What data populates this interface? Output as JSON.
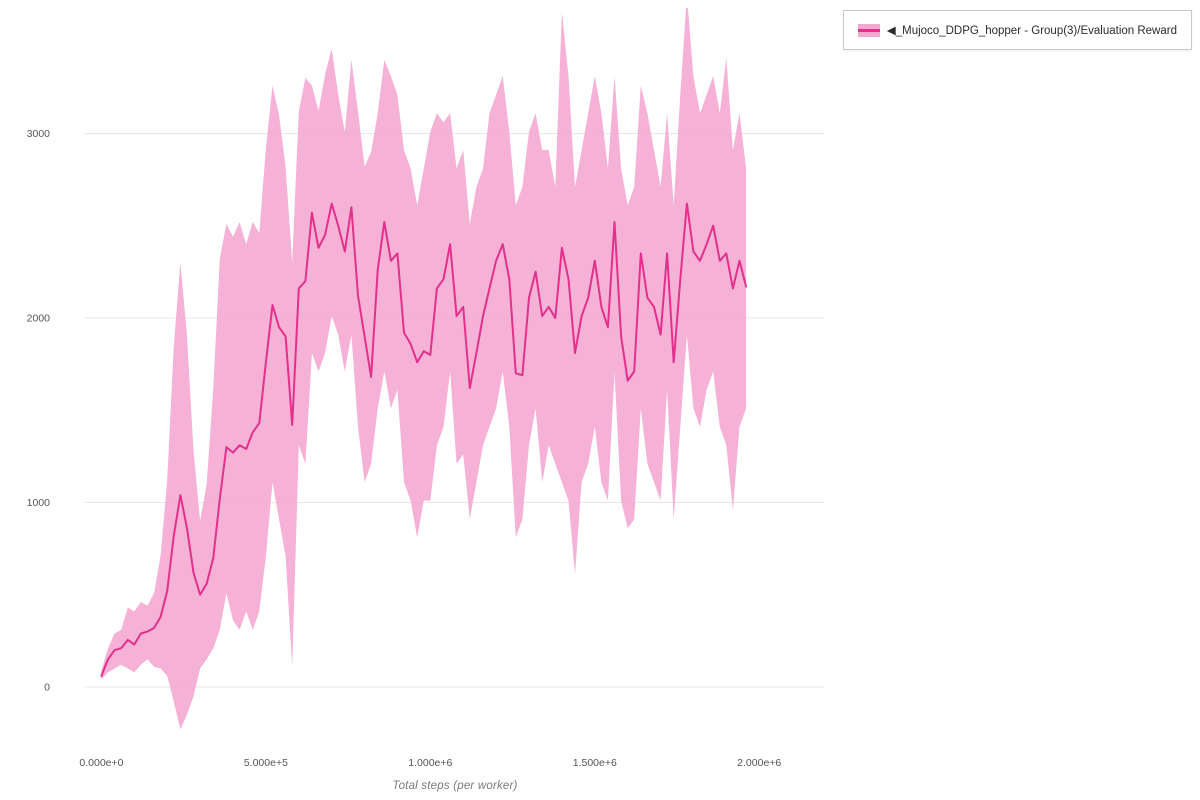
{
  "chart_data": {
    "type": "line",
    "title": "",
    "xlabel": "Total steps (per worker)",
    "ylabel": "",
    "xlim": [
      -50000,
      2200000
    ],
    "ylim": [
      -320,
      3680
    ],
    "grid": "horizontal",
    "legend_position": "top-right",
    "background": "#ffffff",
    "grid_color": "#e8e8e8",
    "tick_color": "#555555",
    "x_ticks": [
      {
        "value": 0,
        "label": "0.000e+0"
      },
      {
        "value": 500000,
        "label": "5.000e+5"
      },
      {
        "value": 1000000,
        "label": "1.000e+6"
      },
      {
        "value": 1500000,
        "label": "1.500e+6"
      },
      {
        "value": 2000000,
        "label": "2.000e+6"
      }
    ],
    "y_ticks": [
      {
        "value": 0,
        "label": "0"
      },
      {
        "value": 1000,
        "label": "1000"
      },
      {
        "value": 2000,
        "label": "2000"
      },
      {
        "value": 3000,
        "label": "3000"
      }
    ],
    "series": [
      {
        "name": "◀_Mujoco_DDPG_hopper - Group(3)/Evaluation Reward",
        "line_color": "#e3308c",
        "band_color": "#f4a9d2",
        "x_start": 0,
        "x_step": 20000,
        "mean": [
          60,
          150,
          200,
          210,
          255,
          230,
          290,
          300,
          320,
          380,
          520,
          820,
          1040,
          860,
          620,
          500,
          560,
          700,
          1020,
          1300,
          1270,
          1310,
          1290,
          1380,
          1430,
          1760,
          2070,
          1950,
          1900,
          1420,
          2160,
          2200,
          2570,
          2380,
          2450,
          2620,
          2500,
          2360,
          2600,
          2120,
          1900,
          1680,
          2260,
          2520,
          2310,
          2350,
          1920,
          1860,
          1760,
          1820,
          1800,
          2160,
          2210,
          2400,
          2010,
          2060,
          1620,
          1810,
          2010,
          2160,
          2310,
          2400,
          2210,
          1700,
          1690,
          2110,
          2250,
          2010,
          2060,
          2000,
          2380,
          2210,
          1810,
          2010,
          2110,
          2310,
          2060,
          1950,
          2520,
          1900,
          1660,
          1710,
          2350,
          2110,
          2060,
          1910,
          2350,
          1760,
          2210,
          2620,
          2360,
          2310,
          2400,
          2500,
          2310,
          2350,
          2160,
          2310,
          2170
        ],
        "upper": [
          90,
          210,
          290,
          310,
          430,
          410,
          460,
          440,
          510,
          710,
          1120,
          1850,
          2300,
          1900,
          1280,
          900,
          1100,
          1620,
          2320,
          2510,
          2440,
          2520,
          2400,
          2520,
          2460,
          2920,
          3260,
          3100,
          2820,
          2300,
          3120,
          3300,
          3260,
          3120,
          3320,
          3460,
          3210,
          3010,
          3400,
          3120,
          2820,
          2900,
          3110,
          3400,
          3310,
          3210,
          2910,
          2810,
          2610,
          2810,
          3010,
          3110,
          3060,
          3110,
          2810,
          2910,
          2510,
          2710,
          2810,
          3110,
          3210,
          3310,
          3010,
          2610,
          2710,
          3010,
          3110,
          2910,
          2910,
          2710,
          3660,
          3310,
          2710,
          2910,
          3110,
          3310,
          3110,
          2810,
          3310,
          2810,
          2610,
          2710,
          3260,
          3110,
          2910,
          2710,
          3110,
          2610,
          3210,
          3750,
          3310,
          3110,
          3210,
          3310,
          3110,
          3410,
          2910,
          3110,
          2810
        ],
        "lower": [
          40,
          80,
          100,
          120,
          100,
          80,
          120,
          150,
          110,
          100,
          60,
          -80,
          -230,
          -150,
          -50,
          100,
          150,
          210,
          310,
          510,
          360,
          310,
          410,
          310,
          410,
          710,
          1110,
          910,
          710,
          110,
          1310,
          1210,
          1810,
          1710,
          1810,
          2010,
          1910,
          1710,
          1910,
          1410,
          1110,
          1210,
          1510,
          1710,
          1510,
          1610,
          1110,
          1010,
          810,
          1010,
          1010,
          1310,
          1410,
          1710,
          1210,
          1260,
          910,
          1110,
          1310,
          1410,
          1510,
          1710,
          1410,
          810,
          910,
          1310,
          1510,
          1110,
          1310,
          1210,
          1110,
          1010,
          610,
          1110,
          1210,
          1410,
          1110,
          1010,
          1710,
          1010,
          860,
          910,
          1510,
          1210,
          1110,
          1010,
          1610,
          910,
          1410,
          1910,
          1510,
          1410,
          1610,
          1710,
          1410,
          1310,
          960,
          1410,
          1510
        ]
      }
    ]
  },
  "legend": {
    "items": [
      {
        "label": "◀_Mujoco_DDPG_hopper - Group(3)/Evaluation Reward"
      }
    ]
  }
}
